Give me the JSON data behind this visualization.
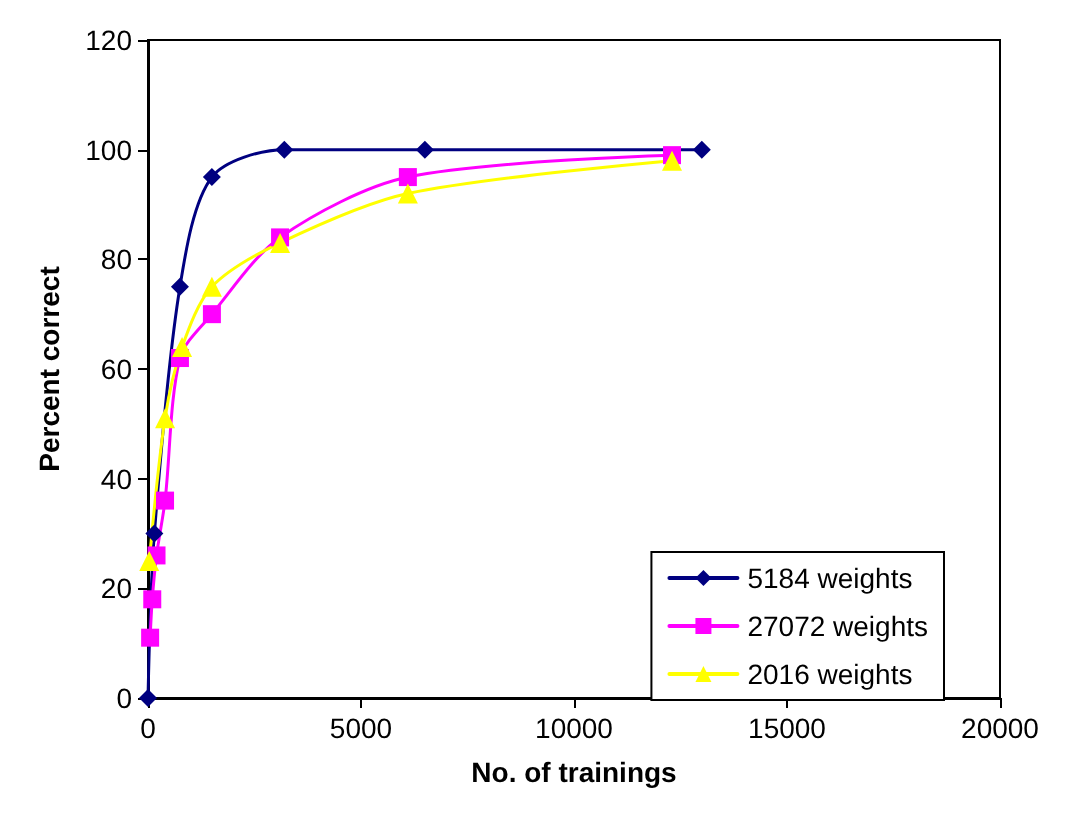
{
  "chart_data": {
    "type": "line",
    "xlabel": "No. of trainings",
    "ylabel": "Percent correct",
    "xlim": [
      0,
      20000
    ],
    "xticks": [
      0,
      5000,
      10000,
      15000,
      20000
    ],
    "ylim": [
      0,
      120
    ],
    "yticks": [
      0,
      20,
      40,
      60,
      80,
      100,
      120
    ],
    "grid": false,
    "legend": "bottom right",
    "line_style": "solid",
    "series": [
      {
        "name": "5184 weights",
        "color": "#000080",
        "marker": "diamond",
        "x": [
          0,
          150,
          750,
          1500,
          3200,
          6500,
          13000
        ],
        "values": [
          0,
          30,
          75,
          95,
          100,
          100,
          100
        ]
      },
      {
        "name": "27072 weights",
        "color": "#ff00ff",
        "marker": "square",
        "x": [
          50,
          100,
          200,
          400,
          750,
          1500,
          3100,
          6100,
          12300
        ],
        "values": [
          11,
          18,
          26,
          36,
          62,
          70,
          84,
          95,
          99
        ]
      },
      {
        "name": "2016 weights",
        "color": "#ffff00",
        "marker": "triangle",
        "x": [
          30,
          400,
          800,
          1500,
          3100,
          6100,
          12300
        ],
        "values": [
          25,
          51,
          64,
          75,
          83,
          92,
          98
        ]
      }
    ]
  }
}
